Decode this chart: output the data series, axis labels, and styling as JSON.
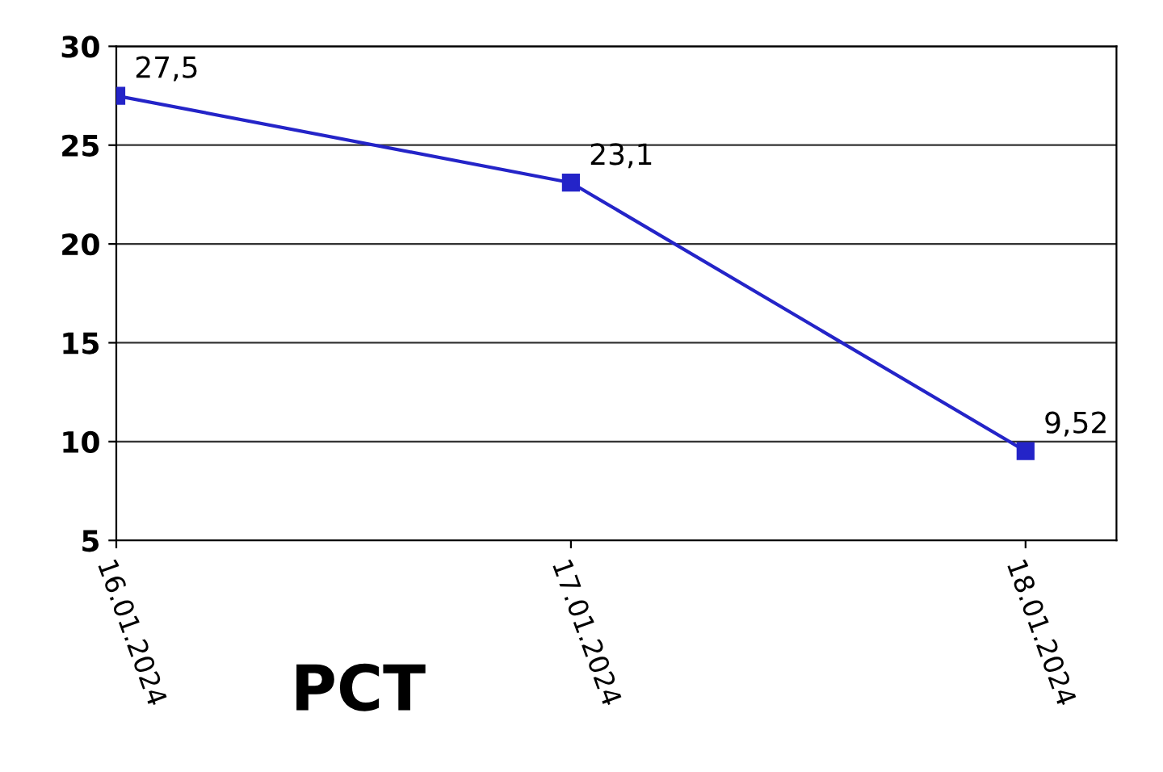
{
  "chart_data": {
    "type": "line",
    "categories": [
      "16.01.2024",
      "17.01.2024",
      "18.01.2024"
    ],
    "series": [
      {
        "color": "#2424c8",
        "values": [
          27.5,
          23.1,
          9.52
        ],
        "value_labels": [
          "27,5",
          "23,1",
          "9,52"
        ]
      }
    ],
    "ylim": [
      5,
      30
    ],
    "yticks": [
      5,
      10,
      15,
      20,
      25,
      30
    ],
    "grid": "y",
    "marker": "square",
    "line_style": "solid",
    "annotations": [
      "PCT"
    ]
  }
}
